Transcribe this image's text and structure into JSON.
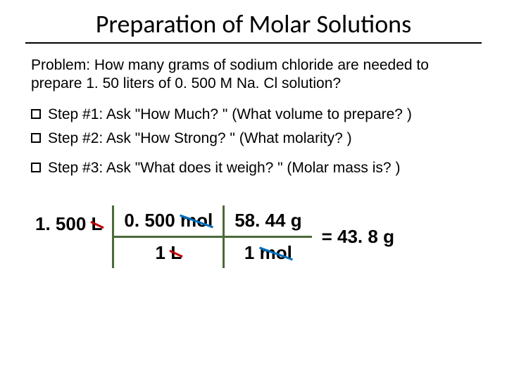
{
  "title": "Preparation of Molar Solutions",
  "problem": "Problem: How many grams of sodium chloride are needed to prepare 1. 50 liters of 0. 500 M Na. Cl solution?",
  "steps": [
    "Step #1: Ask \"How Much? \" (What volume to prepare? )",
    "Step #2: Ask \"How Strong? \" (What molarity? )",
    "Step #3: Ask \"What does it weigh? \" (Molar mass is? )"
  ],
  "calc": {
    "term1_top_val": "1. 500",
    "term1_top_unit": "L",
    "term2_top_val": "0. 500",
    "term2_top_unit": "mol",
    "term2_bot_val": "1",
    "term2_bot_unit": "L",
    "term3_top_val": "58. 44",
    "term3_top_unit": "g",
    "term3_bot_val": "1",
    "term3_bot_unit": "mol",
    "result": "= 43. 8 g"
  },
  "colors": {
    "frac_line": "#4a6a3a",
    "strike_liter": "#c00000",
    "strike_mol": "#0070c0"
  }
}
